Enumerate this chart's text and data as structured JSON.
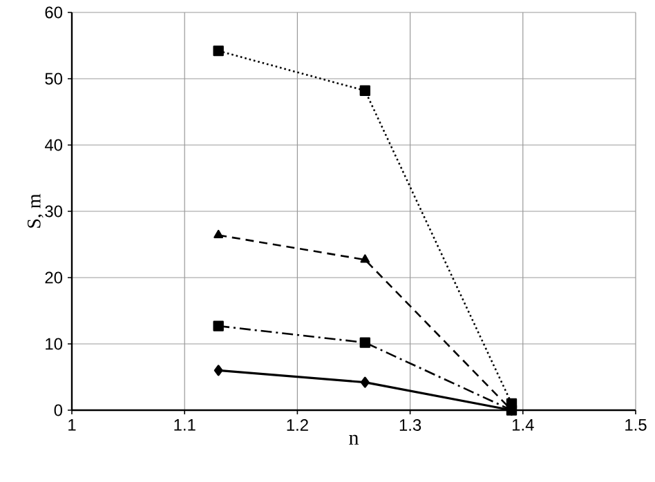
{
  "chart_data": {
    "type": "line",
    "xlabel": "n",
    "ylabel": "S, m",
    "xlim": [
      1,
      1.5
    ],
    "xticks": [
      1,
      1.1,
      1.2,
      1.3,
      1.4,
      1.5
    ],
    "ylim": [
      0,
      60
    ],
    "yticks": [
      0,
      10,
      20,
      30,
      40,
      50,
      60
    ],
    "grid": true,
    "series": [
      {
        "color": "#000000",
        "marker": "square",
        "line_style": "dotted",
        "x": [
          1.13,
          1.26,
          1.39
        ],
        "values": [
          54.2,
          48.2,
          1
        ]
      },
      {
        "color": "#000000",
        "marker": "triangle",
        "line_style": "dashed",
        "x": [
          1.13,
          1.26,
          1.39
        ],
        "values": [
          26.4,
          22.7,
          0
        ]
      },
      {
        "color": "#000000",
        "marker": "square",
        "line_style": "dashdot",
        "x": [
          1.13,
          1.26,
          1.39
        ],
        "values": [
          12.7,
          10.2,
          0
        ]
      },
      {
        "color": "#000000",
        "marker": "diamond",
        "line_style": "solid",
        "x": [
          1.13,
          1.26,
          1.39
        ],
        "values": [
          6,
          4.2,
          0
        ]
      }
    ]
  }
}
